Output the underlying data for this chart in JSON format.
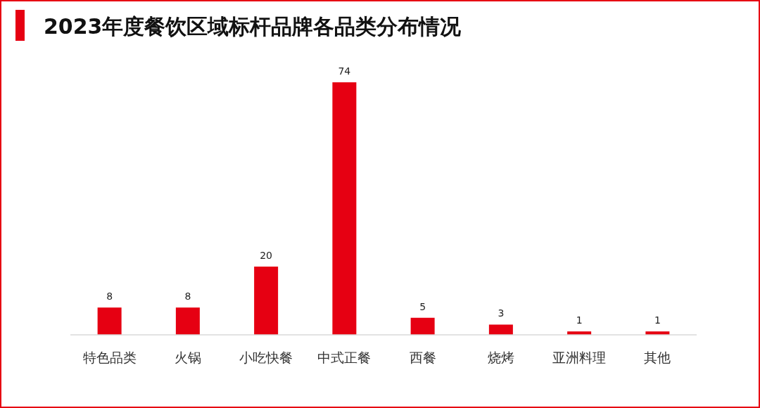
{
  "chart_data": {
    "type": "bar",
    "title": "2023年度餐饮区域标杆品牌各品类分布情况",
    "categories": [
      "特色品类",
      "火锅",
      "小吃快餐",
      "中式正餐",
      "西餐",
      "烧烤",
      "亚洲料理",
      "其他"
    ],
    "values": [
      8,
      8,
      20,
      74,
      5,
      3,
      1,
      1
    ],
    "color": "#e60012",
    "data_labels": true
  }
}
